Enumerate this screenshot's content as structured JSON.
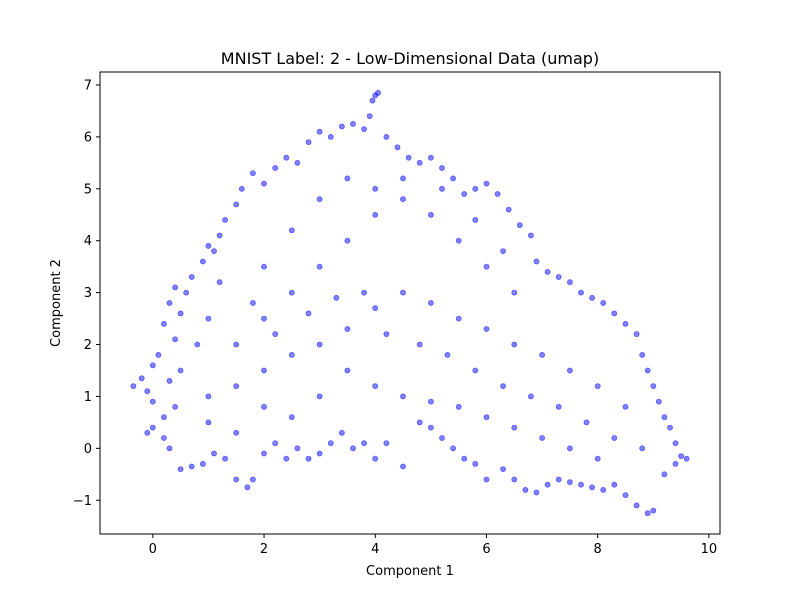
{
  "chart_data": {
    "type": "scatter",
    "title": "MNIST Label: 2 - Low-Dimensional Data (umap)",
    "xlabel": "Component 1",
    "ylabel": "Component 2",
    "xlim": [
      -0.95,
      10.2
    ],
    "ylim": [
      -1.65,
      7.25
    ],
    "xticks": [
      0,
      2,
      4,
      6,
      8,
      10
    ],
    "xtick_labels": [
      "0",
      "2",
      "4",
      "6",
      "8",
      "10"
    ],
    "yticks": [
      -1,
      0,
      1,
      2,
      3,
      4,
      5,
      6,
      7
    ],
    "ytick_labels": [
      "−1",
      "0",
      "1",
      "2",
      "3",
      "4",
      "5",
      "6",
      "7"
    ],
    "grid": false,
    "legend": "none",
    "marker_color": "#0000ff",
    "marker_alpha": 0.5,
    "series": [
      {
        "points": [
          [
            -0.35,
            1.2
          ],
          [
            -0.2,
            1.35
          ],
          [
            -0.1,
            1.1
          ],
          [
            0.0,
            1.6
          ],
          [
            0.1,
            1.8
          ],
          [
            0.0,
            0.9
          ],
          [
            0.2,
            0.6
          ],
          [
            0.3,
            1.3
          ],
          [
            0.4,
            2.1
          ],
          [
            0.5,
            2.6
          ],
          [
            0.6,
            3.0
          ],
          [
            0.4,
            3.1
          ],
          [
            0.3,
            2.8
          ],
          [
            0.2,
            2.4
          ],
          [
            0.7,
            3.3
          ],
          [
            0.9,
            3.6
          ],
          [
            1.0,
            3.9
          ],
          [
            1.2,
            4.1
          ],
          [
            1.1,
            3.8
          ],
          [
            1.3,
            4.4
          ],
          [
            1.5,
            4.7
          ],
          [
            1.6,
            5.0
          ],
          [
            1.8,
            5.3
          ],
          [
            2.0,
            5.1
          ],
          [
            2.2,
            5.4
          ],
          [
            2.4,
            5.6
          ],
          [
            2.6,
            5.5
          ],
          [
            2.8,
            5.9
          ],
          [
            3.0,
            6.1
          ],
          [
            3.2,
            6.0
          ],
          [
            3.4,
            6.2
          ],
          [
            3.6,
            6.25
          ],
          [
            3.8,
            6.15
          ],
          [
            3.9,
            6.4
          ],
          [
            4.0,
            6.8
          ],
          [
            4.05,
            6.85
          ],
          [
            3.95,
            6.7
          ],
          [
            4.2,
            6.0
          ],
          [
            4.4,
            5.8
          ],
          [
            4.6,
            5.6
          ],
          [
            4.8,
            5.5
          ],
          [
            5.0,
            5.6
          ],
          [
            5.2,
            5.4
          ],
          [
            5.4,
            5.2
          ],
          [
            5.6,
            4.9
          ],
          [
            5.8,
            5.0
          ],
          [
            6.0,
            5.1
          ],
          [
            6.2,
            4.9
          ],
          [
            6.4,
            4.6
          ],
          [
            6.6,
            4.3
          ],
          [
            6.8,
            4.1
          ],
          [
            6.9,
            3.6
          ],
          [
            7.1,
            3.4
          ],
          [
            7.3,
            3.3
          ],
          [
            7.5,
            3.2
          ],
          [
            7.7,
            3.0
          ],
          [
            7.9,
            2.9
          ],
          [
            8.1,
            2.8
          ],
          [
            8.3,
            2.6
          ],
          [
            8.5,
            2.4
          ],
          [
            8.7,
            2.2
          ],
          [
            8.8,
            1.8
          ],
          [
            8.9,
            1.5
          ],
          [
            9.0,
            1.2
          ],
          [
            9.1,
            0.9
          ],
          [
            9.2,
            0.6
          ],
          [
            9.3,
            0.4
          ],
          [
            9.4,
            0.1
          ],
          [
            9.5,
            -0.15
          ],
          [
            9.6,
            -0.2
          ],
          [
            9.4,
            -0.3
          ],
          [
            9.2,
            -0.5
          ],
          [
            9.0,
            -1.2
          ],
          [
            8.9,
            -1.25
          ],
          [
            8.7,
            -1.1
          ],
          [
            8.5,
            -0.9
          ],
          [
            8.3,
            -0.7
          ],
          [
            8.1,
            -0.8
          ],
          [
            7.9,
            -0.75
          ],
          [
            7.7,
            -0.7
          ],
          [
            7.5,
            -0.65
          ],
          [
            7.3,
            -0.6
          ],
          [
            7.1,
            -0.7
          ],
          [
            6.9,
            -0.85
          ],
          [
            6.7,
            -0.8
          ],
          [
            6.5,
            -0.6
          ],
          [
            6.3,
            -0.4
          ],
          [
            6.0,
            -0.6
          ],
          [
            5.8,
            -0.3
          ],
          [
            5.6,
            -0.2
          ],
          [
            5.4,
            0.0
          ],
          [
            5.2,
            0.2
          ],
          [
            5.0,
            0.4
          ],
          [
            4.8,
            0.5
          ],
          [
            4.5,
            -0.35
          ],
          [
            4.2,
            0.1
          ],
          [
            4.0,
            -0.2
          ],
          [
            3.8,
            0.1
          ],
          [
            3.6,
            0.0
          ],
          [
            3.4,
            0.3
          ],
          [
            3.2,
            0.1
          ],
          [
            3.0,
            -0.1
          ],
          [
            2.8,
            -0.2
          ],
          [
            2.6,
            0.0
          ],
          [
            2.4,
            -0.2
          ],
          [
            2.2,
            0.1
          ],
          [
            2.0,
            -0.1
          ],
          [
            1.8,
            -0.6
          ],
          [
            1.7,
            -0.75
          ],
          [
            1.5,
            -0.6
          ],
          [
            1.3,
            -0.2
          ],
          [
            1.1,
            -0.1
          ],
          [
            0.9,
            -0.3
          ],
          [
            0.7,
            -0.35
          ],
          [
            0.5,
            -0.4
          ],
          [
            0.3,
            0.0
          ],
          [
            0.2,
            0.2
          ],
          [
            0.0,
            0.4
          ],
          [
            -0.1,
            0.3
          ],
          [
            0.4,
            0.8
          ],
          [
            1.0,
            1.0
          ],
          [
            1.5,
            1.2
          ],
          [
            2.0,
            1.5
          ],
          [
            2.5,
            1.8
          ],
          [
            3.0,
            2.0
          ],
          [
            3.5,
            2.3
          ],
          [
            4.0,
            2.7
          ],
          [
            4.5,
            3.0
          ],
          [
            5.0,
            2.8
          ],
          [
            5.5,
            2.5
          ],
          [
            6.0,
            2.3
          ],
          [
            6.5,
            2.0
          ],
          [
            7.0,
            1.8
          ],
          [
            7.5,
            1.5
          ],
          [
            8.0,
            1.2
          ],
          [
            8.5,
            0.8
          ],
          [
            2.0,
            2.5
          ],
          [
            2.5,
            3.0
          ],
          [
            3.0,
            3.5
          ],
          [
            3.5,
            4.0
          ],
          [
            4.0,
            4.5
          ],
          [
            4.5,
            4.8
          ],
          [
            5.0,
            4.5
          ],
          [
            5.5,
            4.0
          ],
          [
            6.0,
            3.5
          ],
          [
            6.5,
            3.0
          ],
          [
            1.5,
            2.0
          ],
          [
            1.0,
            2.5
          ],
          [
            1.2,
            3.2
          ],
          [
            2.0,
            3.5
          ],
          [
            2.5,
            4.2
          ],
          [
            3.0,
            4.8
          ],
          [
            3.5,
            5.2
          ],
          [
            4.0,
            5.0
          ],
          [
            4.5,
            5.2
          ],
          [
            5.2,
            5.0
          ],
          [
            5.8,
            4.4
          ],
          [
            6.3,
            3.8
          ],
          [
            3.8,
            3.0
          ],
          [
            4.2,
            2.2
          ],
          [
            4.8,
            2.0
          ],
          [
            5.3,
            1.8
          ],
          [
            5.8,
            1.5
          ],
          [
            6.3,
            1.2
          ],
          [
            6.8,
            1.0
          ],
          [
            7.3,
            0.8
          ],
          [
            7.8,
            0.5
          ],
          [
            8.3,
            0.2
          ],
          [
            8.8,
            0.0
          ],
          [
            3.0,
            1.0
          ],
          [
            3.5,
            1.5
          ],
          [
            4.0,
            1.2
          ],
          [
            4.5,
            1.0
          ],
          [
            5.0,
            0.9
          ],
          [
            5.5,
            0.8
          ],
          [
            6.0,
            0.6
          ],
          [
            6.5,
            0.4
          ],
          [
            7.0,
            0.2
          ],
          [
            7.5,
            0.0
          ],
          [
            8.0,
            -0.2
          ],
          [
            2.5,
            0.6
          ],
          [
            2.0,
            0.8
          ],
          [
            1.5,
            0.3
          ],
          [
            1.0,
            0.5
          ],
          [
            0.5,
            1.5
          ],
          [
            0.8,
            2.0
          ],
          [
            1.8,
            2.8
          ],
          [
            2.2,
            2.2
          ],
          [
            2.8,
            2.6
          ],
          [
            3.3,
            2.9
          ]
        ]
      }
    ]
  }
}
